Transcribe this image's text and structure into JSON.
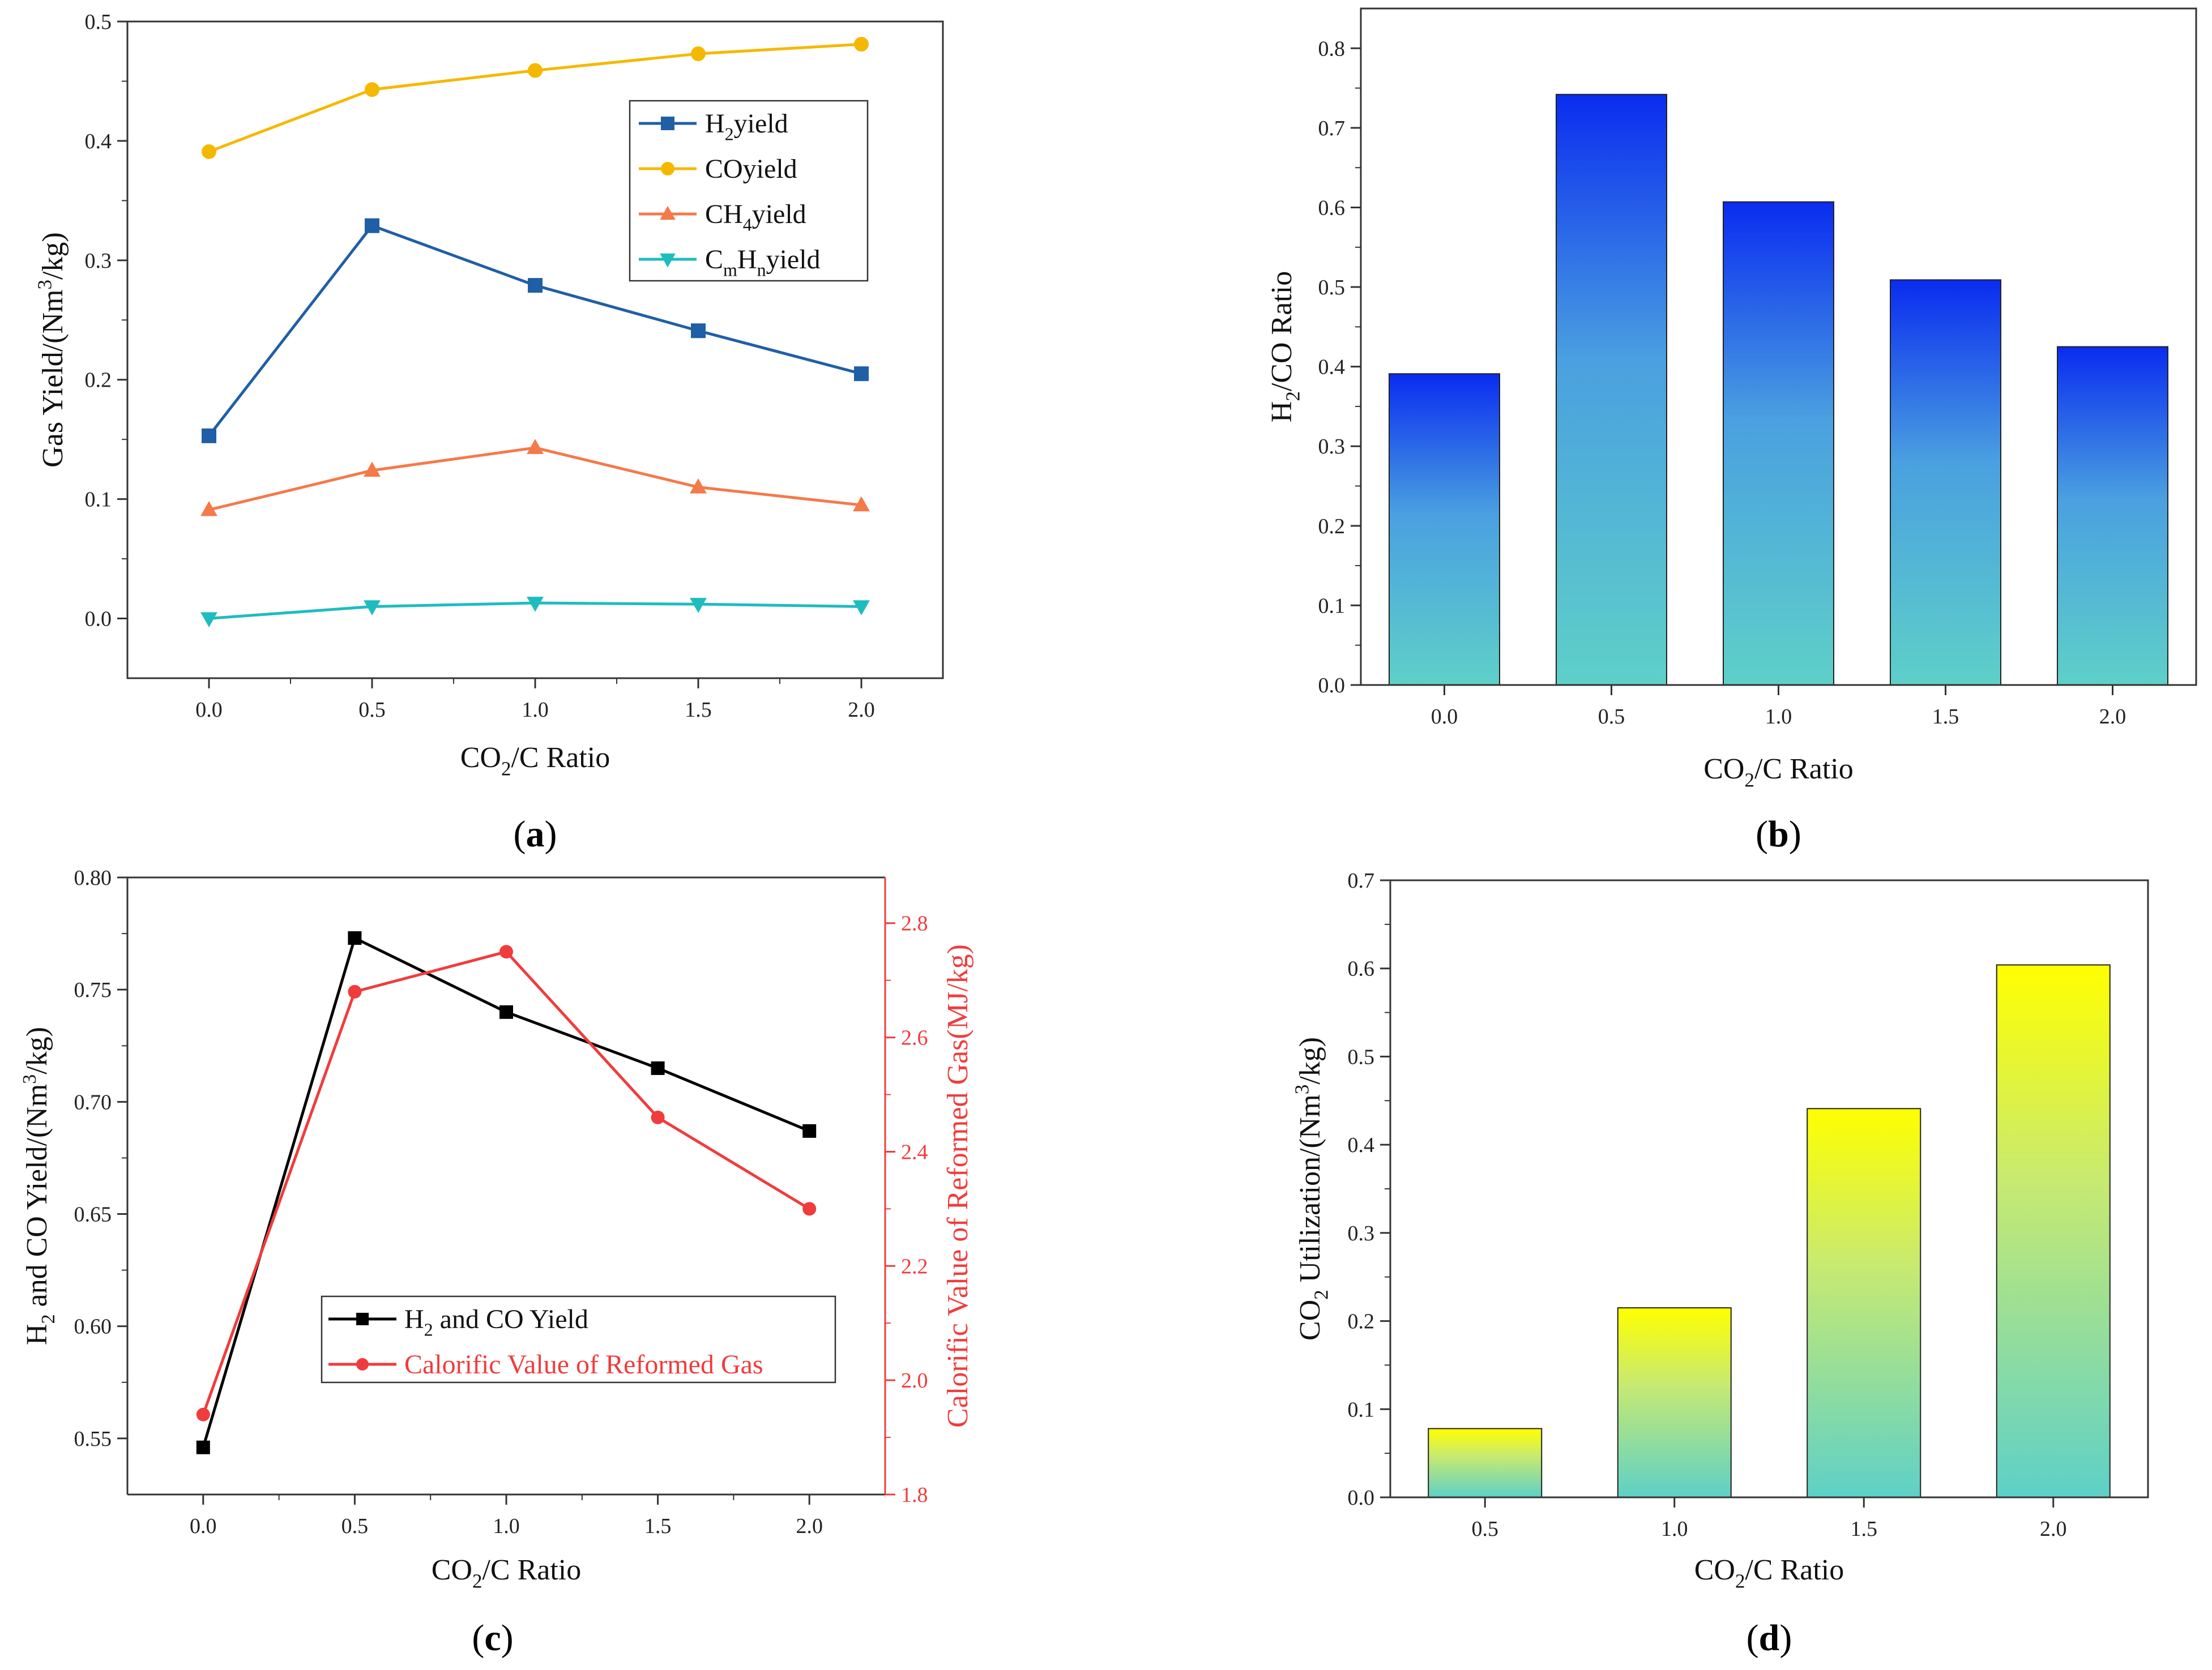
{
  "chart_data": [
    {
      "id": "a",
      "type": "line",
      "panel_label": "a",
      "categories": [
        "0.0",
        "0.5",
        "1.0",
        "1.5",
        "2.0"
      ],
      "x": [
        0.0,
        0.5,
        1.0,
        1.5,
        2.0
      ],
      "xlim": [
        -0.25,
        2.25
      ],
      "ylim": [
        -0.05,
        0.5
      ],
      "yticks": [
        "0.0",
        "0.1",
        "0.2",
        "0.3",
        "0.4",
        "0.5"
      ],
      "ytick_values": [
        0.0,
        0.1,
        0.2,
        0.3,
        0.4,
        0.5
      ],
      "xlabel": {
        "pre": "CO",
        "sub": "2",
        "post": "/C Ratio"
      },
      "ylabel": {
        "pre": "Gas Yield/(Nm",
        "sup": "3",
        "post": "/kg)"
      },
      "legend": "top-right",
      "series": [
        {
          "name": "H2yield",
          "label_parts": [
            "H",
            "2",
            "yield"
          ],
          "label_kind": "sub",
          "color": "#1f5fa6",
          "marker": "square",
          "values": [
            0.153,
            0.329,
            0.279,
            0.241,
            0.205
          ]
        },
        {
          "name": "COyield",
          "label_parts": [
            "COyield"
          ],
          "label_kind": "plain",
          "color": "#f5b800",
          "marker": "circle",
          "values": [
            0.391,
            0.443,
            0.459,
            0.473,
            0.481
          ]
        },
        {
          "name": "CH4yield",
          "label_parts": [
            "CH",
            "4",
            "yield"
          ],
          "label_kind": "sub",
          "color": "#f47a4a",
          "marker": "triangle-up",
          "values": [
            0.091,
            0.124,
            0.143,
            0.11,
            0.095
          ]
        },
        {
          "name": "CmHnyield",
          "label_parts": [
            "C",
            "m",
            "H",
            "n",
            "yield"
          ],
          "label_kind": "sub2",
          "color": "#1fbcbf",
          "marker": "triangle-down",
          "values": [
            0.0,
            0.01,
            0.013,
            0.012,
            0.01
          ]
        }
      ]
    },
    {
      "id": "b",
      "type": "bar",
      "panel_label": "b",
      "categories": [
        "0.0",
        "0.5",
        "1.0",
        "1.5",
        "2.0"
      ],
      "values": [
        0.391,
        0.742,
        0.607,
        0.509,
        0.425
      ],
      "ylim": [
        0.0,
        0.85
      ],
      "yticks": [
        "0.0",
        "0.1",
        "0.2",
        "0.3",
        "0.4",
        "0.5",
        "0.6",
        "0.7",
        "0.8"
      ],
      "ytick_values": [
        0.0,
        0.1,
        0.2,
        0.3,
        0.4,
        0.5,
        0.6,
        0.7,
        0.8
      ],
      "xlabel": {
        "pre": "CO",
        "sub": "2",
        "post": "/C Ratio"
      },
      "ylabel": {
        "pre": "H",
        "sub": "2",
        "post": "/CO Ratio"
      },
      "gradient": {
        "top": "#0a2cf0",
        "mid": "#4aa0e0",
        "bottom": "#5ed0c8"
      }
    },
    {
      "id": "c",
      "type": "line",
      "panel_label": "c",
      "categories": [
        "0.0",
        "0.5",
        "1.0",
        "1.5",
        "2.0"
      ],
      "x": [
        0.0,
        0.5,
        1.0,
        1.5,
        2.0
      ],
      "xlim": [
        -0.25,
        2.25
      ],
      "ylim": [
        0.525,
        0.8
      ],
      "yticks": [
        "0.55",
        "0.60",
        "0.65",
        "0.70",
        "0.75",
        "0.80"
      ],
      "ytick_values": [
        0.55,
        0.6,
        0.65,
        0.7,
        0.75,
        0.8
      ],
      "y2lim": [
        1.8,
        2.88
      ],
      "y2ticks": [
        "1.8",
        "2.0",
        "2.2",
        "2.4",
        "2.6",
        "2.8"
      ],
      "y2tick_values": [
        1.8,
        2.0,
        2.2,
        2.4,
        2.6,
        2.8
      ],
      "xlabel": {
        "pre": "CO",
        "sub": "2",
        "post": "/C Ratio"
      },
      "ylabel": {
        "pre": "H",
        "sub": "2",
        "mid": " and CO Yield/(Nm",
        "sup": "3",
        "post": "/kg)"
      },
      "y2label": "Calorific Value of Reformed Gas(MJ/kg)",
      "legend": "bottom-center",
      "series": [
        {
          "name": "H2 and CO Yield",
          "label_parts": [
            "H",
            "2",
            " and CO Yield"
          ],
          "label_kind": "sub",
          "color": "#000000",
          "marker": "square",
          "axis": "left",
          "values": [
            0.546,
            0.773,
            0.74,
            0.715,
            0.687
          ]
        },
        {
          "name": "Calorific Value of Reformed Gas",
          "label_parts": [
            "Calorific Value of Reformed Gas"
          ],
          "label_kind": "plain",
          "color": "#f03c3c",
          "marker": "circle",
          "axis": "right",
          "values": [
            1.94,
            2.68,
            2.75,
            2.46,
            2.3
          ]
        }
      ]
    },
    {
      "id": "d",
      "type": "bar",
      "panel_label": "d",
      "categories": [
        "0.5",
        "1.0",
        "1.5",
        "2.0"
      ],
      "values": [
        0.078,
        0.215,
        0.441,
        0.604
      ],
      "ylim": [
        0.0,
        0.7
      ],
      "yticks": [
        "0.0",
        "0.1",
        "0.2",
        "0.3",
        "0.4",
        "0.5",
        "0.6",
        "0.7"
      ],
      "ytick_values": [
        0.0,
        0.1,
        0.2,
        0.3,
        0.4,
        0.5,
        0.6,
        0.7
      ],
      "xlabel": {
        "pre": "CO",
        "sub": "2",
        "post": "/C Ratio"
      },
      "ylabel": {
        "pre": "CO",
        "sub": "2",
        "mid": " Utilization/(Nm",
        "sup": "3",
        "post": "/kg)"
      },
      "gradient": {
        "top": "#ffff00",
        "mid": "#c8ea70",
        "bottom": "#5ed0c8"
      }
    }
  ]
}
